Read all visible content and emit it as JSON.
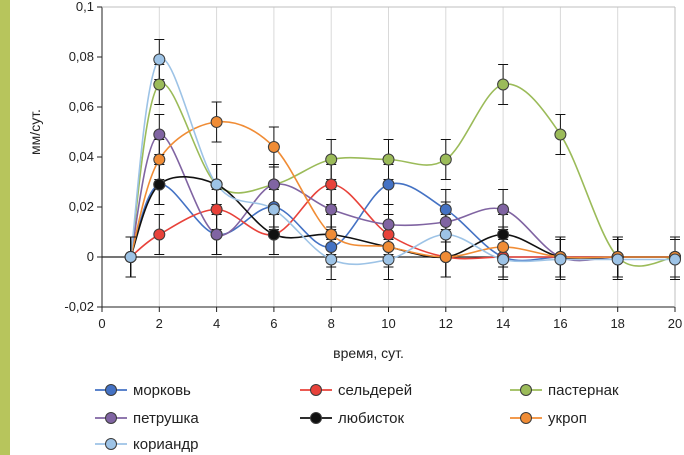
{
  "chart_data": {
    "type": "line",
    "title": "",
    "xlabel": "время, сут.",
    "ylabel": "мм/сут.",
    "xlim": [
      0,
      20
    ],
    "ylim": [
      -0.02,
      0.1
    ],
    "x_ticks": [
      0,
      2,
      4,
      6,
      8,
      10,
      12,
      14,
      16,
      18,
      20
    ],
    "x_tick_labels": [
      "0",
      "2",
      "4",
      "6",
      "8",
      "10",
      "12",
      "14",
      "16",
      "18",
      "20"
    ],
    "y_ticks": [
      -0.02,
      0,
      0.02,
      0.04,
      0.06,
      0.08,
      0.1
    ],
    "y_tick_labels": [
      "-0,02",
      "0",
      "0,02",
      "0,04",
      "0,06",
      "0,08",
      "0,1"
    ],
    "grid": "vertical",
    "legend_position": "bottom",
    "error_bar": 0.008,
    "series": [
      {
        "name": "морковь",
        "color": "#4472c4",
        "x": [
          1,
          2,
          4,
          6,
          8,
          10,
          12,
          14,
          16,
          18,
          20
        ],
        "values": [
          0,
          0.029,
          0.009,
          0.02,
          0.004,
          0.029,
          0.019,
          0.0,
          0.0,
          0.0,
          0.0
        ]
      },
      {
        "name": "сельдерей",
        "color": "#e8423a",
        "x": [
          1,
          2,
          4,
          6,
          8,
          10,
          12,
          14,
          16,
          18,
          20
        ],
        "values": [
          0,
          0.009,
          0.019,
          0.009,
          0.029,
          0.009,
          0.0,
          0.0,
          0.0,
          0.0,
          0.0
        ]
      },
      {
        "name": "пастернак",
        "color": "#9bbb59",
        "x": [
          1,
          2,
          4,
          6,
          8,
          10,
          12,
          14,
          16,
          18,
          20
        ],
        "values": [
          0,
          0.069,
          0.029,
          0.029,
          0.039,
          0.039,
          0.039,
          0.069,
          0.049,
          0.0,
          0.0
        ]
      },
      {
        "name": "петрушка",
        "color": "#8064a2",
        "x": [
          1,
          2,
          4,
          6,
          8,
          10,
          12,
          14,
          16,
          18,
          20
        ],
        "values": [
          0,
          0.049,
          0.009,
          0.029,
          0.019,
          0.013,
          0.014,
          0.019,
          0.0,
          0.0,
          0.0
        ]
      },
      {
        "name": "любисток",
        "color": "#111111",
        "x": [
          1,
          2,
          4,
          6,
          8,
          10,
          12,
          14,
          16,
          18,
          20
        ],
        "values": [
          0,
          0.029,
          0.029,
          0.009,
          0.009,
          0.004,
          0.0,
          0.009,
          0.0,
          0.0,
          0.0
        ]
      },
      {
        "name": "укроп",
        "color": "#f08c35",
        "x": [
          1,
          2,
          4,
          6,
          8,
          10,
          12,
          14,
          16,
          18,
          20
        ],
        "values": [
          0,
          0.039,
          0.054,
          0.044,
          0.009,
          0.004,
          0.0,
          0.004,
          0.0,
          0.0,
          0.0
        ]
      },
      {
        "name": "кориандр",
        "color": "#9dc3e6",
        "x": [
          1,
          2,
          4,
          6,
          8,
          10,
          12,
          14,
          16,
          18,
          20
        ],
        "values": [
          0,
          0.079,
          0.029,
          0.019,
          -0.001,
          -0.001,
          0.009,
          -0.001,
          -0.001,
          -0.001,
          -0.001
        ]
      }
    ]
  }
}
